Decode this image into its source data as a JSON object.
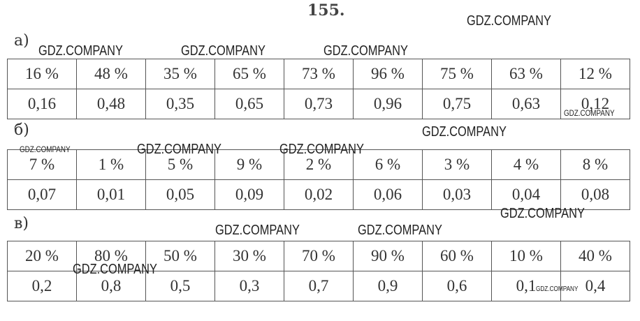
{
  "title": "155.",
  "sections": [
    {
      "label": "а)",
      "rows": [
        [
          "16 %",
          "48 %",
          "35 %",
          "65 %",
          "73 %",
          "96 %",
          "75 %",
          "63 %",
          "12 %"
        ],
        [
          "0,16",
          "0,48",
          "0,35",
          "0,65",
          "0,73",
          "0,96",
          "0,75",
          "0,63",
          "0,12"
        ]
      ]
    },
    {
      "label": "б)",
      "rows": [
        [
          "7 %",
          "1 %",
          "5 %",
          "9 %",
          "2 %",
          "6 %",
          "3 %",
          "4 %",
          "8 %"
        ],
        [
          "0,07",
          "0,01",
          "0,05",
          "0,09",
          "0,02",
          "0,06",
          "0,03",
          "0,04",
          "0,08"
        ]
      ]
    },
    {
      "label": "в)",
      "rows": [
        [
          "20 %",
          "80 %",
          "50 %",
          "30 %",
          "70 %",
          "90 %",
          "60 %",
          "10 %",
          "40 %"
        ],
        [
          "0,2",
          "0,8",
          "0,5",
          "0,3",
          "0,7",
          "0,9",
          "0,6",
          "0,1",
          "0,4"
        ]
      ]
    }
  ],
  "watermarks": [
    "GDZ.COMPANY",
    "GDZ.COMPANY",
    "GDZ.COMPANY",
    "GDZ.COMPANY",
    "GDZ.COMPANY",
    "GDZ.COMPANY",
    "GDZ.COMPANY",
    "GDZ.COMPANY",
    "GDZ.COMPANY",
    "GDZ.COMPANY",
    "GDZ.COMPANY",
    "GDZ.COMPANY",
    "GDZ.COMPANY",
    "GDZ.COMPANY"
  ]
}
